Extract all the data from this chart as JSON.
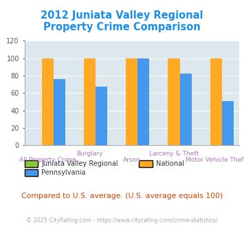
{
  "title": "2012 Juniata Valley Regional\nProperty Crime Comparison",
  "title_color": "#1a8eea",
  "categories": [
    "All Property Crime",
    "Burglary",
    "Arson",
    "Larceny & Theft",
    "Motor Vehicle Theft"
  ],
  "row1_labels": [
    "",
    "Burglary",
    "",
    "Larceny & Theft",
    ""
  ],
  "row2_labels": [
    "All Property Crime",
    "",
    "Arson",
    "",
    "Motor Vehicle Theft"
  ],
  "series": {
    "Juniata Valley Regional": [
      0,
      0,
      0,
      0,
      0
    ],
    "National": [
      100,
      100,
      100,
      100,
      100
    ],
    "Pennsylvania": [
      76,
      67,
      100,
      82,
      51
    ]
  },
  "colors": {
    "Juniata Valley Regional": "#88cc33",
    "National": "#ffaa22",
    "Pennsylvania": "#4499ee"
  },
  "legend_label_color": "#333333",
  "ylim": [
    0,
    120
  ],
  "yticks": [
    0,
    20,
    40,
    60,
    80,
    100,
    120
  ],
  "plot_bg": "#dde8ee",
  "xlabel_color": "#aa77bb",
  "footer_text": "Compared to U.S. average. (U.S. average equals 100)",
  "footer_color": "#cc4400",
  "copyright_text": "© 2025 CityRating.com - https://www.cityrating.com/crime-statistics/",
  "copyright_color": "#aaaaaa",
  "bar_width": 0.28
}
